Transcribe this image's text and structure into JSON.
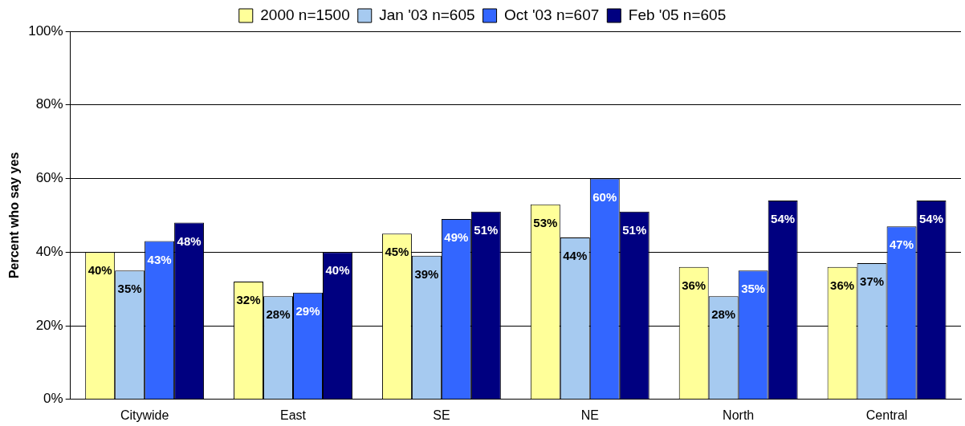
{
  "chart_data": {
    "type": "bar",
    "ylabel": "Percent who say yes",
    "categories": [
      "Citywide",
      "East",
      "SE",
      "NE",
      "North",
      "Central"
    ],
    "series": [
      {
        "name": "2000 n=1500",
        "color": "#ffff99",
        "values": [
          40,
          32,
          45,
          53,
          36,
          36
        ],
        "value_labels": [
          "40%",
          "32%",
          "45%",
          "53%",
          "36%",
          "36%"
        ]
      },
      {
        "name": "Jan '03 n=605",
        "color": "#a6caf0",
        "values": [
          35,
          28,
          39,
          44,
          28,
          37
        ],
        "value_labels": [
          "35%",
          "28%",
          "39%",
          "44%",
          "28%",
          "37%"
        ]
      },
      {
        "name": "Oct '03 n=607",
        "color": "#3366ff",
        "values": [
          43,
          29,
          49,
          60,
          35,
          47
        ],
        "value_labels": [
          "43%",
          "29%",
          "49%",
          "60%",
          "35%",
          "47%"
        ]
      },
      {
        "name": "Feb '05 n=605",
        "color": "#000080",
        "values": [
          48,
          40,
          51,
          51,
          54,
          54
        ],
        "value_labels": [
          "48%",
          "40%",
          "51%",
          "51%",
          "54%",
          "54%"
        ]
      }
    ],
    "ylim": [
      0,
      100
    ],
    "yticks": [
      {
        "value": 0,
        "label": "0%"
      },
      {
        "value": 20,
        "label": "20%"
      },
      {
        "value": 40,
        "label": "40%"
      },
      {
        "value": 60,
        "label": "60%"
      },
      {
        "value": 80,
        "label": "80%"
      },
      {
        "value": 100,
        "label": "100%"
      }
    ],
    "grid": "y",
    "legend": "top"
  }
}
